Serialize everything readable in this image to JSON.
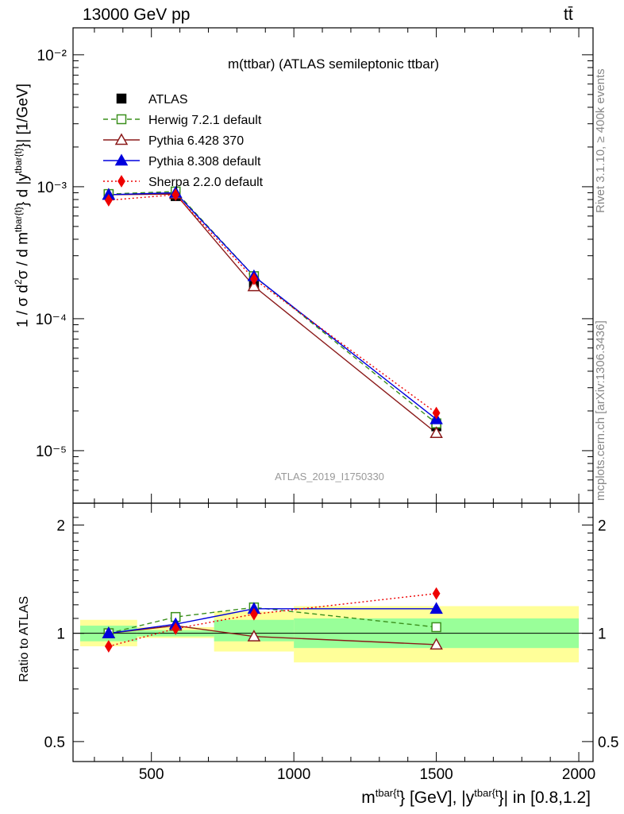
{
  "header": {
    "energy_label": "13000 GeV pp",
    "process_label": "tt̄"
  },
  "side_text": {
    "rivet": "Rivet 3.1.10, ≥ 400k events",
    "mcplots": "mcplots.cern.ch [arXiv:1306.3436]"
  },
  "watermark": "ATLAS_2019_I1750330",
  "x_axis": {
    "label_prefix": "m",
    "label_sup1": "tbar{t",
    "label_mid": "} [GeV], |y",
    "label_sup2": "tbar{t",
    "label_suffix": "}| in [0.8,1.2]",
    "ticks": [
      500,
      1000,
      1500,
      2000
    ],
    "range": [
      225,
      2050
    ]
  },
  "main_y_axis": {
    "label": "1 / σ d²σ / d m^{tbar{t}} d |y^{tbar{t}}| [1/GeV]",
    "scale": "log",
    "range": [
      4e-06,
      0.016
    ],
    "tick_labels": [
      "10⁻²",
      "10⁻³",
      "10⁻⁴",
      "10⁻⁵"
    ]
  },
  "ratio_y_axis": {
    "label": "Ratio to ATLAS",
    "scale": "log",
    "range": [
      0.44,
      2.3
    ],
    "tick_values": [
      0.5,
      1,
      2
    ],
    "tick_labels": [
      "0.5",
      "1",
      "2"
    ]
  },
  "colors": {
    "ATLAS": "#000000",
    "Herwig": "#3a8f1c",
    "Pythia6": "#8b1a1a",
    "Pythia8": "#0000dd",
    "Sherpa": "#ee0000",
    "band_inner": "#99ff99",
    "band_outer": "#ffff99"
  },
  "chart_data": {
    "type": "line",
    "title": "m(ttbar) (ATLAS semileptonic ttbar)",
    "x_bins": [
      [
        250,
        450
      ],
      [
        450,
        720
      ],
      [
        720,
        1000
      ],
      [
        1000,
        2000
      ]
    ],
    "x": [
      350,
      585,
      860,
      1500
    ],
    "legend_placement": "top-left",
    "series": [
      {
        "name": "ATLAS",
        "marker": "filled-square",
        "style": "solid",
        "values": [
          0.00087,
          0.00085,
          0.00018,
          1.53e-05
        ]
      },
      {
        "name": "Herwig 7.2.1 default",
        "marker": "open-square",
        "style": "dashed",
        "values": [
          0.00088,
          0.00092,
          0.00021,
          1.61e-05
        ]
      },
      {
        "name": "Pythia 6.428 370",
        "marker": "open-triangle",
        "style": "solid",
        "values": [
          0.00087,
          0.00088,
          0.000176,
          1.36e-05
        ]
      },
      {
        "name": "Pythia 8.308 default",
        "marker": "filled-triangle",
        "style": "solid",
        "values": [
          0.00087,
          0.0009,
          0.00021,
          1.73e-05
        ]
      },
      {
        "name": "Sherpa 2.2.0 default",
        "marker": "filled-diamond",
        "style": "dotted",
        "values": [
          0.00079,
          0.00087,
          0.0002,
          1.93e-05
        ]
      }
    ],
    "ratio": {
      "ylabel": "Ratio to ATLAS",
      "reference": 1,
      "band_inner": [
        [
          0.95,
          1.05
        ],
        [
          0.98,
          1.02
        ],
        [
          0.95,
          1.09
        ],
        [
          0.91,
          1.1
        ]
      ],
      "band_outer": [
        [
          0.92,
          1.09
        ],
        [
          0.97,
          1.04
        ],
        [
          0.89,
          1.15
        ],
        [
          0.83,
          1.19
        ]
      ],
      "series": [
        {
          "name": "Herwig 7.2.1 default",
          "values": [
            1.0,
            1.11,
            1.18,
            1.04
          ]
        },
        {
          "name": "Pythia 6.428 370",
          "values": [
            1.0,
            1.05,
            0.98,
            0.93
          ]
        },
        {
          "name": "Pythia 8.308 default",
          "values": [
            1.0,
            1.06,
            1.17,
            1.17
          ]
        },
        {
          "name": "Sherpa 2.2.0 default",
          "values": [
            0.92,
            1.03,
            1.13,
            1.29
          ]
        }
      ],
      "errors": [
        {
          "name": "Sherpa 2.2.0 default",
          "index": 3,
          "low": 1.27,
          "high": 1.31
        },
        {
          "name": "Pythia 8.308 default",
          "index": 3,
          "low": 1.16,
          "high": 1.18
        }
      ]
    }
  }
}
